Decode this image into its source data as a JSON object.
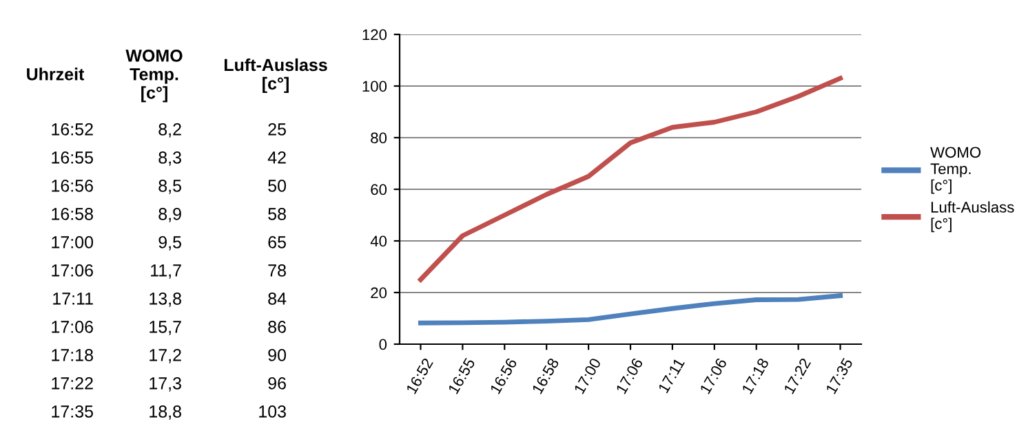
{
  "chart_data": [
    {
      "type": "other",
      "annotations": [
        "Uhrzeit",
        "WOMO Temp. [c°]",
        "Luft-Auslass [c°]",
        "16:52",
        "8,2",
        "25",
        "16:55",
        "8,3",
        "42",
        "16:56",
        "8,5",
        "50",
        "16:58",
        "8,9",
        "58",
        "17:00",
        "9,5",
        "65",
        "17:06",
        "11,7",
        "78",
        "17:11",
        "13,8",
        "84",
        "17:06",
        "15,7",
        "86",
        "17:18",
        "17,2",
        "90",
        "17:22",
        "17,3",
        "96",
        "17:35",
        "18,8",
        "103"
      ]
    },
    {
      "type": "line",
      "categories": [
        "16:52",
        "16:55",
        "16:56",
        "16:58",
        "17:00",
        "17:06",
        "17:11",
        "17:06",
        "17:18",
        "17:22",
        "17:35"
      ],
      "series": [
        {
          "name": "WOMO Temp. [c°]",
          "color": "#4f81bd",
          "values": [
            8.2,
            8.3,
            8.5,
            8.9,
            9.5,
            11.7,
            13.8,
            15.7,
            17.2,
            17.3,
            18.8
          ]
        },
        {
          "name": "Luft-Auslass [c°]",
          "color": "#c0504d",
          "values": [
            25,
            42,
            50,
            58,
            65,
            78,
            84,
            86,
            90,
            96,
            103
          ]
        }
      ],
      "ylim": [
        0,
        120
      ],
      "yticks": [
        0,
        20,
        40,
        60,
        80,
        100,
        120
      ],
      "grid": "y",
      "legend": "right",
      "marker": "none",
      "line_style": "solid"
    }
  ]
}
